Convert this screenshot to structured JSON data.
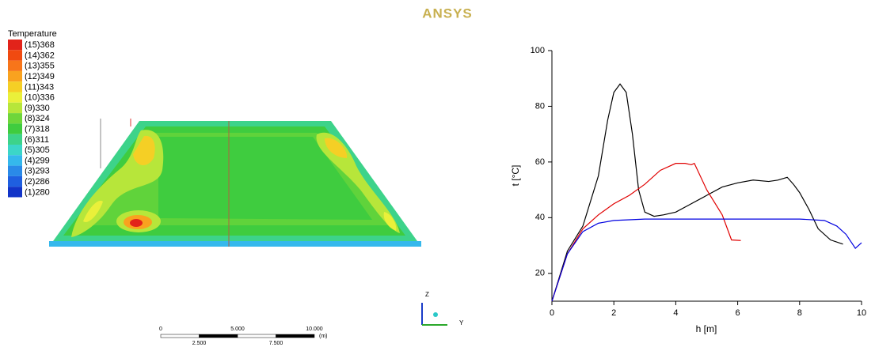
{
  "logo": "ANSYS",
  "chart_data": [
    {
      "type": "contour",
      "title": "Temperature",
      "levels": [
        {
          "value": 368,
          "label": "(15)368"
        },
        {
          "value": 362,
          "label": "(14)362"
        },
        {
          "value": 355,
          "label": "(13)355"
        },
        {
          "value": 349,
          "label": "(12)349"
        },
        {
          "value": 343,
          "label": "(11)343"
        },
        {
          "value": 336,
          "label": "(10)336"
        },
        {
          "value": 330,
          "label": "(9)330"
        },
        {
          "value": 324,
          "label": "(8)324"
        },
        {
          "value": 318,
          "label": "(7)318"
        },
        {
          "value": 311,
          "label": "(6)311"
        },
        {
          "value": 305,
          "label": "(5)305"
        },
        {
          "value": 299,
          "label": "(4)299"
        },
        {
          "value": 293,
          "label": "(3)293"
        },
        {
          "value": 286,
          "label": "(2)286"
        },
        {
          "value": 280,
          "label": "(1)280"
        }
      ],
      "colors": [
        "#e2231a",
        "#f04a10",
        "#f7751a",
        "#f9a21f",
        "#f5cf25",
        "#eaf03a",
        "#b7e63a",
        "#6fd63a",
        "#3fcc3f",
        "#3dd38a",
        "#3cd6c8",
        "#35b8ec",
        "#2a8ae8",
        "#1f5fe0",
        "#1234c8"
      ],
      "scale_bar": {
        "range": [
          0,
          10
        ],
        "ticks": [
          0,
          {
            "value": 2.5,
            "label": "2.500"
          },
          {
            "value": 5,
            "label": "5.000"
          },
          {
            "value": 7.5,
            "label": "7.500"
          },
          {
            "value": 10,
            "label": "10.000"
          }
        ],
        "unit": "(m)"
      },
      "triad_labels": [
        "Z",
        "Y"
      ]
    },
    {
      "type": "line",
      "x_label": "h [m]",
      "y_label": "t [°C]",
      "xlim": [
        0,
        10
      ],
      "ylim": [
        10,
        100
      ],
      "xticks": [
        0,
        2,
        4,
        6,
        8,
        10
      ],
      "yticks": [
        20,
        40,
        60,
        80,
        100
      ],
      "series": [
        {
          "color": "#000000",
          "x": [
            0,
            0.5,
            1,
            1.5,
            1.8,
            2,
            2.2,
            2.4,
            2.6,
            2.8,
            3,
            3.3,
            3.6,
            4,
            4.5,
            5,
            5.5,
            6,
            6.5,
            7,
            7.3,
            7.6,
            7.8,
            8,
            8.3,
            8.6,
            9,
            9.4
          ],
          "values": [
            10,
            28,
            37,
            55,
            75,
            85,
            88,
            85,
            70,
            50,
            42,
            40.5,
            41,
            42,
            45,
            48,
            51,
            52.5,
            53.5,
            53,
            53.5,
            54.5,
            52,
            49,
            43,
            36,
            32,
            30.5
          ]
        },
        {
          "color": "#e00000",
          "x": [
            0,
            0.5,
            1,
            1.5,
            2,
            2.5,
            3,
            3.5,
            4,
            4.3,
            4.5,
            4.6,
            5,
            5.5,
            5.8,
            6.1
          ],
          "values": [
            10,
            27,
            36,
            41,
            45,
            48,
            52,
            57,
            59.5,
            59.5,
            59,
            59.5,
            50,
            41,
            32,
            31.8
          ]
        },
        {
          "color": "#0000e0",
          "x": [
            0,
            0.5,
            1,
            1.5,
            2,
            3,
            4,
            6,
            8,
            8.8,
            9.2,
            9.5,
            9.8,
            10
          ],
          "values": [
            10,
            27,
            35,
            38,
            39,
            39.5,
            39.5,
            39.5,
            39.5,
            39,
            37,
            34,
            29,
            31
          ]
        }
      ]
    }
  ]
}
